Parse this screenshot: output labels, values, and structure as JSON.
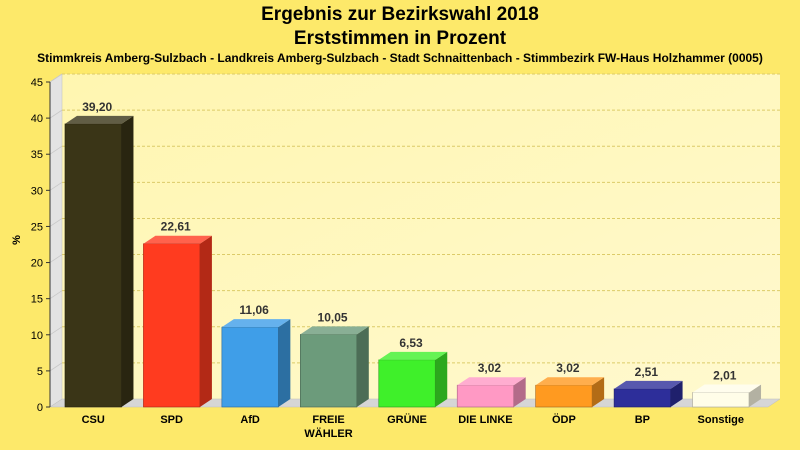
{
  "chart_data": {
    "type": "bar",
    "title": "Ergebnis zur Bezirkswahl 2018",
    "title_line2": "Erststimmen in Prozent",
    "subtitle": "Stimmkreis Amberg-Sulzbach - Landkreis Amberg-Sulzbach - Stadt Schnaittenbach - Stimmbezirk FW-Haus Holzhammer (0005)",
    "ylabel": "%",
    "ylim": [
      0,
      45
    ],
    "yticks": [
      0,
      5,
      10,
      15,
      20,
      25,
      30,
      35,
      40,
      45
    ],
    "grid": true,
    "categories": [
      [
        "CSU"
      ],
      [
        "SPD"
      ],
      [
        "AfD"
      ],
      [
        "FREIE",
        "WÄHLER"
      ],
      [
        "GRÜNE"
      ],
      [
        "DIE LINKE"
      ],
      [
        "ÖDP"
      ],
      [
        "BP"
      ],
      [
        "Sonstige"
      ]
    ],
    "values": [
      39.2,
      22.61,
      11.06,
      10.05,
      6.53,
      3.02,
      3.02,
      2.51,
      2.01
    ],
    "value_labels": [
      "39,20",
      "22,61",
      "11,06",
      "10,05",
      "6,53",
      "3,02",
      "3,02",
      "2,51",
      "2,01"
    ],
    "colors": [
      "#3a3517",
      "#ff3b1f",
      "#3f9ee8",
      "#6c9b7b",
      "#3ff02a",
      "#ff99c4",
      "#ff9a20",
      "#2d2e9a",
      "#fffde8"
    ]
  }
}
